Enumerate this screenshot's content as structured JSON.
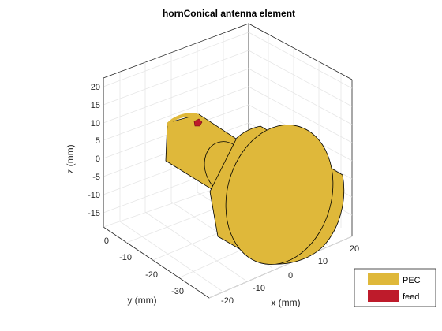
{
  "figure": {
    "title": "hornConical antenna element",
    "z_axis": {
      "label": "z (mm)",
      "ticks": [
        "20",
        "15",
        "10",
        "5",
        "0",
        "-5",
        "-10",
        "-15"
      ]
    },
    "y_axis": {
      "label": "y (mm)",
      "ticks": [
        "0",
        "-10",
        "-20",
        "-30"
      ]
    },
    "x_axis": {
      "label": "x (mm)",
      "ticks": [
        "-20",
        "-10",
        "0",
        "10",
        "20"
      ]
    },
    "legend": {
      "placement": "bottom-right",
      "items": [
        {
          "label": "PEC",
          "color": "#DFB83A"
        },
        {
          "label": "feed",
          "color": "#BE1B2B"
        }
      ]
    },
    "colors": {
      "metal": "#DFB83A",
      "feed": "#BE1B2B",
      "grid": "#E6E6E6",
      "axis": "#262626"
    }
  }
}
